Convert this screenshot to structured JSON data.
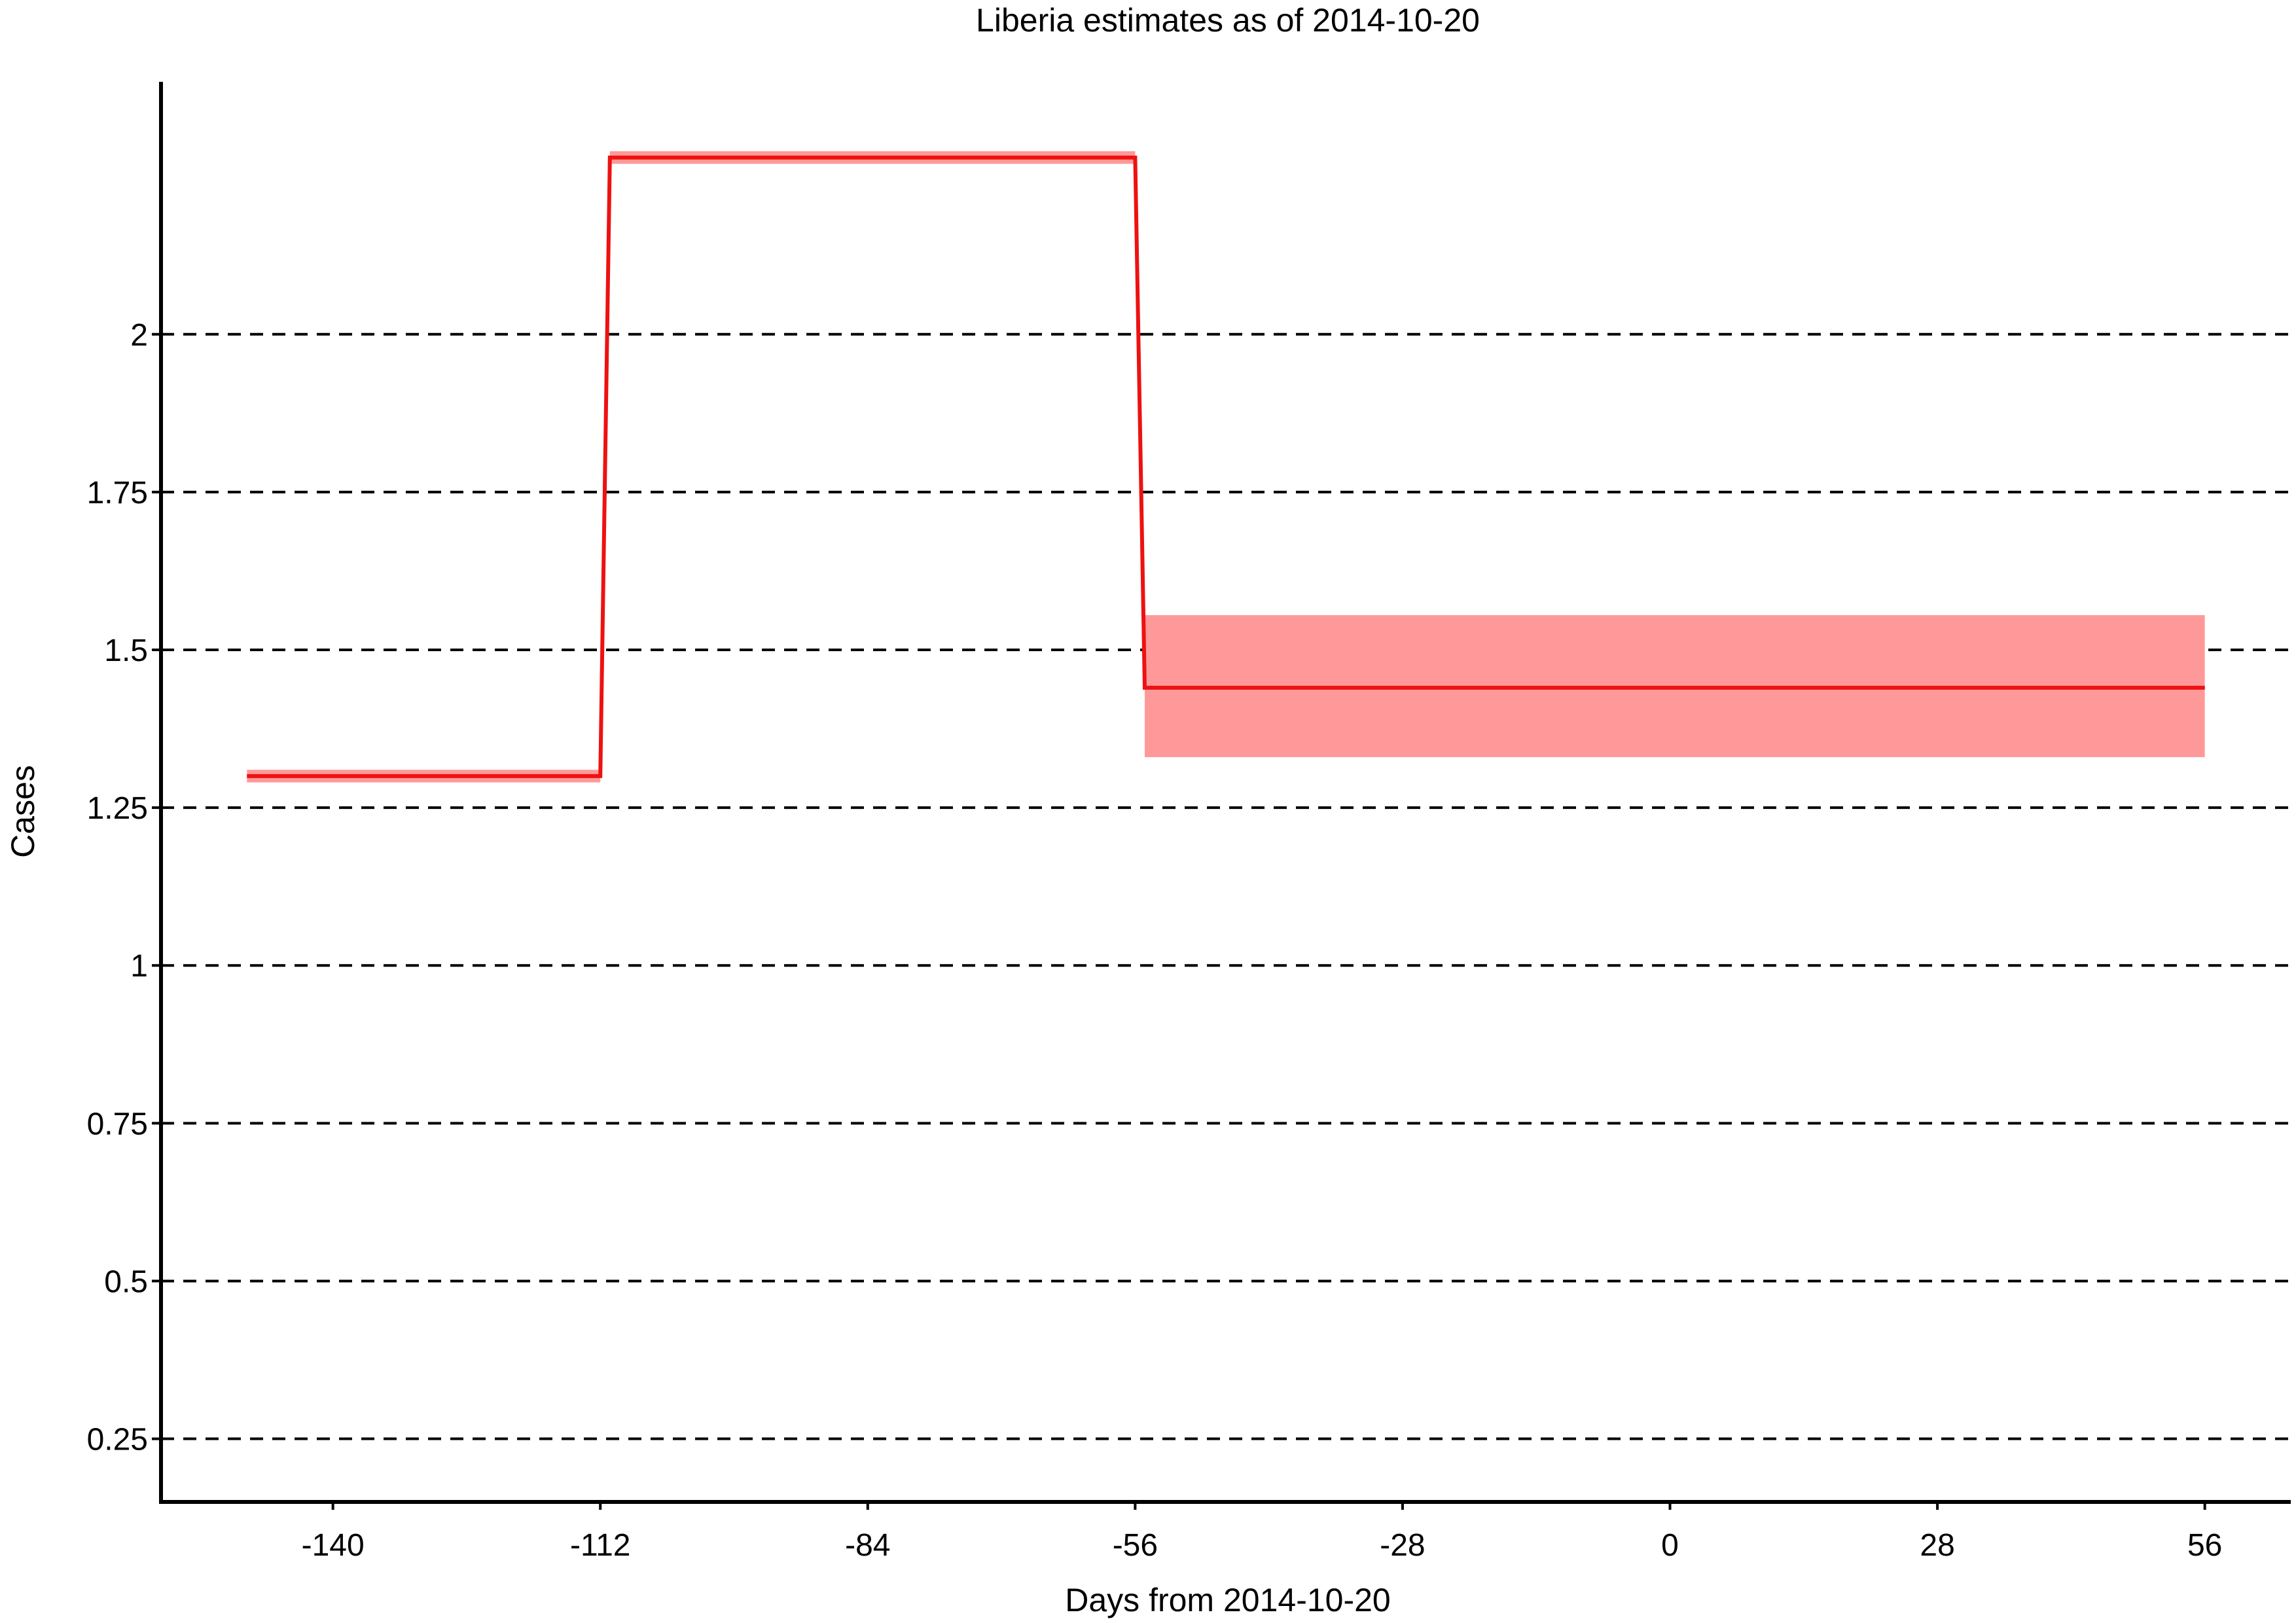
{
  "chart_data": {
    "type": "line",
    "title": "Liberia estimates as of 2014-10-20",
    "xlabel": "Days from 2014-10-20",
    "ylabel": "Cases",
    "x_ticks": [
      -140,
      -112,
      -84,
      -56,
      -28,
      0,
      28,
      56
    ],
    "y_ticks": [
      0.25,
      0.5,
      0.75,
      1,
      1.25,
      1.5,
      1.75,
      2
    ],
    "y_tick_labels": [
      "0.25",
      "0.5",
      "0.75",
      "1",
      "1.25",
      "1.5",
      "1.75",
      "2"
    ],
    "xlim": [
      -158,
      65
    ],
    "ylim": [
      0.15,
      2.4
    ],
    "grid": "horizontal dashed",
    "colors": {
      "line": "#ee1111",
      "band": "#ff9999"
    },
    "series": [
      {
        "segments": [
          {
            "x_start": -149,
            "x_end": -112,
            "value": 1.3,
            "lower": 1.29,
            "upper": 1.31
          },
          {
            "x_start": -111,
            "x_end": -56,
            "value": 2.28,
            "lower": 2.27,
            "upper": 2.29
          },
          {
            "x_start": -55,
            "x_end": 56,
            "value": 1.44,
            "lower": 1.33,
            "upper": 1.555
          }
        ]
      }
    ]
  }
}
